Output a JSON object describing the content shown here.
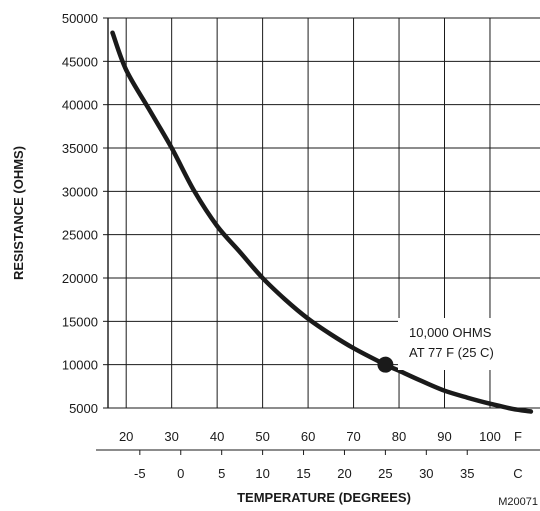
{
  "chart_data": {
    "type": "line",
    "title": "",
    "xlabel": "TEMPERATURE (DEGREES)",
    "ylabel": "RESISTANCE (OHMS)",
    "x_unit_label_f": "F",
    "x_unit_label_c": "C",
    "xlim_f": [
      16,
      111
    ],
    "ylim": [
      5000,
      50000
    ],
    "y_ticks": [
      5000,
      10000,
      15000,
      20000,
      25000,
      30000,
      35000,
      40000,
      45000,
      50000
    ],
    "x_ticks_f": [
      20,
      30,
      40,
      50,
      60,
      70,
      80,
      90,
      100
    ],
    "x_ticks_c": [
      -5,
      0,
      5,
      10,
      15,
      20,
      25,
      30,
      35
    ],
    "grid": true,
    "series": [
      {
        "x": [
          17,
          20,
          25,
          30,
          35,
          40,
          45,
          50,
          55,
          60,
          65,
          70,
          77,
          80,
          85,
          90,
          95,
          100,
          105,
          109
        ],
        "y": [
          48300,
          44000,
          39500,
          35000,
          30000,
          26000,
          23000,
          20000,
          17500,
          15300,
          13500,
          11900,
          10000,
          9300,
          8100,
          7000,
          6200,
          5500,
          4900,
          4600
        ]
      }
    ],
    "highlight_point": {
      "x": 77,
      "y": 10000
    },
    "annotation": {
      "line1": "10,000 OHMS",
      "line2": "AT 77 F (25 C)"
    },
    "figure_code": "M20071"
  }
}
